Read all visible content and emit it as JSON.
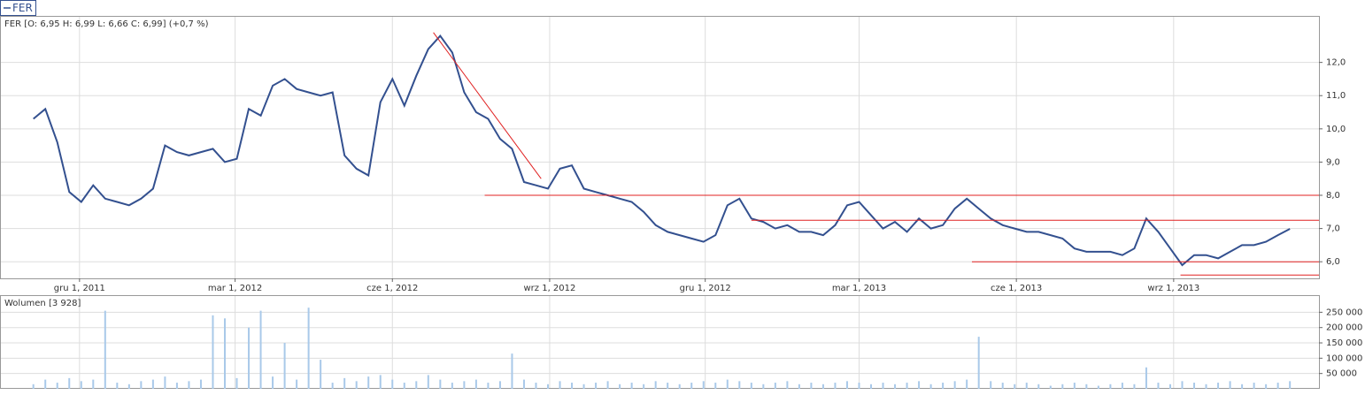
{
  "legend_label": "FER",
  "chart_data": [
    {
      "type": "line",
      "title": "FER [O: 6,95  H: 6,99  L: 6,66  C: 6,99] (+0,7 %)",
      "series": [
        {
          "name": "FER",
          "color": "#33508f"
        }
      ],
      "x": [
        "2011-11-04",
        "2011-11-11",
        "2011-11-18",
        "2011-11-25",
        "2011-12-02",
        "2011-12-09",
        "2011-12-16",
        "2011-12-23",
        "2011-12-30",
        "2012-01-06",
        "2012-01-13",
        "2012-01-20",
        "2012-01-27",
        "2012-02-03",
        "2012-02-10",
        "2012-02-17",
        "2012-02-24",
        "2012-03-02",
        "2012-03-09",
        "2012-03-16",
        "2012-03-23",
        "2012-03-30",
        "2012-04-06",
        "2012-04-13",
        "2012-04-20",
        "2012-04-27",
        "2012-05-04",
        "2012-05-11",
        "2012-05-18",
        "2012-05-25",
        "2012-06-01",
        "2012-06-08",
        "2012-06-15",
        "2012-06-22",
        "2012-06-29",
        "2012-07-06",
        "2012-07-13",
        "2012-07-20",
        "2012-07-27",
        "2012-08-03",
        "2012-08-10",
        "2012-08-17",
        "2012-08-24",
        "2012-08-31",
        "2012-09-07",
        "2012-09-14",
        "2012-09-21",
        "2012-09-28",
        "2012-10-05",
        "2012-10-12",
        "2012-10-19",
        "2012-10-26",
        "2012-11-02",
        "2012-11-09",
        "2012-11-16",
        "2012-11-23",
        "2012-11-30",
        "2012-12-07",
        "2012-12-14",
        "2012-12-21",
        "2012-12-28",
        "2013-01-04",
        "2013-01-11",
        "2013-01-18",
        "2013-01-25",
        "2013-02-01",
        "2013-02-08",
        "2013-02-15",
        "2013-02-22",
        "2013-03-01",
        "2013-03-08",
        "2013-03-15",
        "2013-03-22",
        "2013-03-29",
        "2013-04-05",
        "2013-04-12",
        "2013-04-19",
        "2013-04-26",
        "2013-05-03",
        "2013-05-10",
        "2013-05-17",
        "2013-05-24",
        "2013-05-31",
        "2013-06-07",
        "2013-06-14",
        "2013-06-21",
        "2013-06-28",
        "2013-07-05",
        "2013-07-12",
        "2013-07-19",
        "2013-07-26",
        "2013-08-02",
        "2013-08-09",
        "2013-08-16",
        "2013-08-23",
        "2013-08-30",
        "2013-09-06",
        "2013-09-13",
        "2013-09-20",
        "2013-09-27",
        "2013-10-04",
        "2013-10-11",
        "2013-10-18",
        "2013-10-25",
        "2013-11-01",
        "2013-11-08"
      ],
      "values": [
        10.3,
        10.6,
        9.6,
        8.1,
        7.8,
        8.3,
        7.9,
        7.8,
        7.7,
        7.9,
        8.2,
        9.5,
        9.3,
        9.2,
        9.3,
        9.4,
        9.0,
        9.1,
        10.6,
        10.4,
        11.3,
        11.5,
        11.2,
        11.1,
        11.0,
        11.1,
        9.2,
        8.8,
        8.6,
        10.8,
        11.5,
        10.7,
        11.6,
        12.4,
        12.8,
        12.3,
        11.1,
        10.5,
        10.3,
        9.7,
        9.4,
        8.4,
        8.3,
        8.2,
        8.8,
        8.9,
        8.2,
        8.1,
        8.0,
        7.9,
        7.8,
        7.5,
        7.1,
        6.9,
        6.8,
        6.7,
        6.6,
        6.8,
        7.7,
        7.9,
        7.3,
        7.2,
        7.0,
        7.1,
        6.9,
        6.9,
        6.8,
        7.1,
        7.7,
        7.8,
        7.4,
        7.0,
        7.2,
        6.9,
        7.3,
        7.0,
        7.1,
        7.6,
        7.9,
        7.6,
        7.3,
        7.1,
        7.0,
        6.9,
        6.9,
        6.8,
        6.7,
        6.4,
        6.3,
        6.3,
        6.3,
        6.2,
        6.4,
        7.3,
        6.9,
        6.4,
        5.9,
        6.2,
        6.2,
        6.1,
        6.3,
        6.5,
        6.5,
        6.6,
        6.8,
        6.99
      ],
      "xlim": [
        "2011-10-16",
        "2013-11-25"
      ],
      "xticks": [
        {
          "value": "2011-12-01",
          "label": "gru 1, 2011"
        },
        {
          "value": "2012-03-01",
          "label": "mar 1, 2012"
        },
        {
          "value": "2012-06-01",
          "label": "cze 1, 2012"
        },
        {
          "value": "2012-09-01",
          "label": "wrz 1, 2012"
        },
        {
          "value": "2012-12-01",
          "label": "gru 1, 2012"
        },
        {
          "value": "2013-03-01",
          "label": "mar 1, 2013"
        },
        {
          "value": "2013-06-01",
          "label": "cze 1, 2013"
        },
        {
          "value": "2013-09-01",
          "label": "wrz 1, 2013"
        }
      ],
      "ylim": [
        5.5,
        13.4
      ],
      "yticks": [
        {
          "value": 6,
          "label": "6,0"
        },
        {
          "value": 7,
          "label": "7,0"
        },
        {
          "value": 8,
          "label": "8,0"
        },
        {
          "value": 9,
          "label": "9,0"
        },
        {
          "value": 10,
          "label": "10,0"
        },
        {
          "value": 11,
          "label": "11,0"
        },
        {
          "value": 12,
          "label": "12,0"
        }
      ],
      "grid": true,
      "trend_lines": [
        {
          "x": [
            "2012-06-25",
            "2012-08-27"
          ],
          "y": [
            12.9,
            8.5
          ],
          "color": "#e02020"
        },
        {
          "x": [
            "2012-07-25",
            "2013-11-25"
          ],
          "y": [
            8.0,
            8.0
          ],
          "color": "#e02020"
        },
        {
          "x": [
            "2012-12-28",
            "2013-11-25"
          ],
          "y": [
            7.25,
            7.25
          ],
          "color": "#e02020"
        },
        {
          "x": [
            "2013-05-06",
            "2013-11-25"
          ],
          "y": [
            6.0,
            6.0
          ],
          "color": "#e02020"
        },
        {
          "x": [
            "2013-09-05",
            "2013-11-25"
          ],
          "y": [
            5.6,
            5.6
          ],
          "color": "#e02020"
        }
      ]
    },
    {
      "type": "bar",
      "title": "Wolumen [3 928]",
      "color": "#a9c9e9",
      "x": [
        "2011-11-04",
        "2011-11-11",
        "2011-11-18",
        "2011-11-25",
        "2011-12-02",
        "2011-12-09",
        "2011-12-16",
        "2011-12-23",
        "2011-12-30",
        "2012-01-06",
        "2012-01-13",
        "2012-01-20",
        "2012-01-27",
        "2012-02-03",
        "2012-02-10",
        "2012-02-17",
        "2012-02-24",
        "2012-03-02",
        "2012-03-09",
        "2012-03-16",
        "2012-03-23",
        "2012-03-30",
        "2012-04-06",
        "2012-04-13",
        "2012-04-20",
        "2012-04-27",
        "2012-05-04",
        "2012-05-11",
        "2012-05-18",
        "2012-05-25",
        "2012-06-01",
        "2012-06-08",
        "2012-06-15",
        "2012-06-22",
        "2012-06-29",
        "2012-07-06",
        "2012-07-13",
        "2012-07-20",
        "2012-07-27",
        "2012-08-03",
        "2012-08-10",
        "2012-08-17",
        "2012-08-24",
        "2012-08-31",
        "2012-09-07",
        "2012-09-14",
        "2012-09-21",
        "2012-09-28",
        "2012-10-05",
        "2012-10-12",
        "2012-10-19",
        "2012-10-26",
        "2012-11-02",
        "2012-11-09",
        "2012-11-16",
        "2012-11-23",
        "2012-11-30",
        "2012-12-07",
        "2012-12-14",
        "2012-12-21",
        "2012-12-28",
        "2013-01-04",
        "2013-01-11",
        "2013-01-18",
        "2013-01-25",
        "2013-02-01",
        "2013-02-08",
        "2013-02-15",
        "2013-02-22",
        "2013-03-01",
        "2013-03-08",
        "2013-03-15",
        "2013-03-22",
        "2013-03-29",
        "2013-04-05",
        "2013-04-12",
        "2013-04-19",
        "2013-04-26",
        "2013-05-03",
        "2013-05-10",
        "2013-05-17",
        "2013-05-24",
        "2013-05-31",
        "2013-06-07",
        "2013-06-14",
        "2013-06-21",
        "2013-06-28",
        "2013-07-05",
        "2013-07-12",
        "2013-07-19",
        "2013-07-26",
        "2013-08-02",
        "2013-08-09",
        "2013-08-16",
        "2013-08-23",
        "2013-08-30",
        "2013-09-06",
        "2013-09-13",
        "2013-09-20",
        "2013-09-27",
        "2013-10-04",
        "2013-10-11",
        "2013-10-18",
        "2013-10-25",
        "2013-11-01",
        "2013-11-08"
      ],
      "values": [
        15000,
        30000,
        20000,
        35000,
        25000,
        30000,
        255000,
        20000,
        15000,
        25000,
        30000,
        40000,
        20000,
        25000,
        30000,
        240000,
        230000,
        35000,
        200000,
        255000,
        40000,
        150000,
        30000,
        265000,
        95000,
        20000,
        35000,
        25000,
        40000,
        45000,
        30000,
        20000,
        25000,
        45000,
        30000,
        20000,
        25000,
        30000,
        20000,
        25000,
        115000,
        30000,
        20000,
        15000,
        25000,
        20000,
        15000,
        20000,
        25000,
        15000,
        20000,
        15000,
        25000,
        20000,
        15000,
        20000,
        25000,
        20000,
        30000,
        25000,
        20000,
        15000,
        20000,
        25000,
        15000,
        20000,
        15000,
        20000,
        25000,
        20000,
        15000,
        20000,
        15000,
        20000,
        25000,
        15000,
        20000,
        25000,
        30000,
        170000,
        25000,
        20000,
        15000,
        20000,
        15000,
        10000,
        15000,
        20000,
        15000,
        10000,
        15000,
        20000,
        15000,
        70000,
        20000,
        15000,
        25000,
        20000,
        15000,
        20000,
        25000,
        15000,
        20000,
        15000,
        20000,
        25000
      ],
      "xlim": [
        "2011-10-16",
        "2013-11-25"
      ],
      "ylim": [
        0,
        303000
      ],
      "yticks": [
        {
          "value": 50000,
          "label": "50 000"
        },
        {
          "value": 100000,
          "label": "100 000"
        },
        {
          "value": 150000,
          "label": "150 000"
        },
        {
          "value": 200000,
          "label": "200 000"
        },
        {
          "value": 250000,
          "label": "250 000"
        }
      ],
      "grid": true
    }
  ]
}
